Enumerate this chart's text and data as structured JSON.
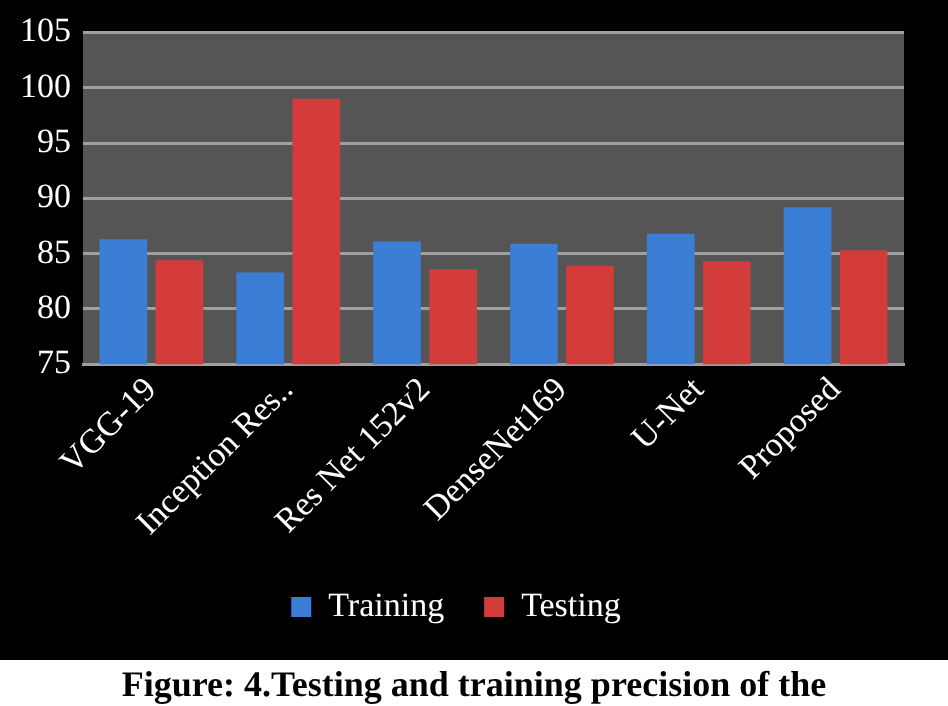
{
  "chart_data": {
    "type": "bar",
    "categories": [
      "VGG-19",
      "Inception Res..",
      "Res Net 152v2",
      "DenseNet169",
      "U-Net",
      "Proposed"
    ],
    "series": [
      {
        "name": "Training",
        "color": "#3a7fd5",
        "values": [
          86.3,
          83.3,
          86.1,
          85.9,
          86.8,
          89.2
        ]
      },
      {
        "name": "Testing",
        "color": "#d43c3c",
        "values": [
          84.4,
          99.0,
          83.6,
          83.9,
          84.3,
          85.3
        ]
      }
    ],
    "ylim": [
      75,
      105
    ],
    "yticks": [
      75,
      80,
      85,
      90,
      95,
      100,
      105
    ],
    "grid": "y",
    "legend": "bottom",
    "annotations": [
      "Figure: 4.Testing and training precision of the"
    ]
  }
}
